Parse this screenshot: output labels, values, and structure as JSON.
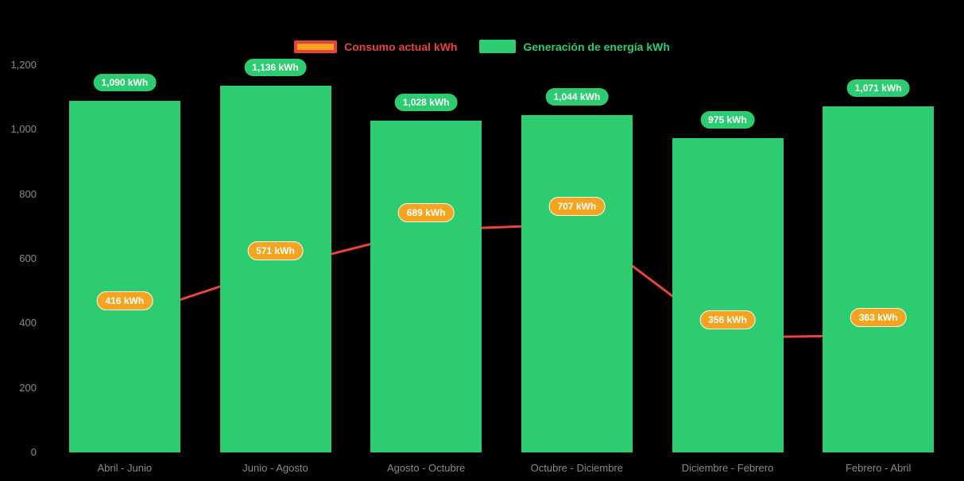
{
  "chart_data": {
    "type": "bar+line",
    "title": "",
    "categories": [
      "Abril - Junio",
      "Junio - Agosto",
      "Agosto - Octubre",
      "Octubre - Diciembre",
      "Diciembre - Febrero",
      "Febrero - Abril"
    ],
    "series": [
      {
        "name": "Consumo actual kWh",
        "type": "line",
        "color": "#e8433c",
        "marker_color": "#f6a41f",
        "values": [
          416,
          571,
          689,
          707,
          356,
          363
        ],
        "point_labels": [
          "416 kWh",
          "571 kWh",
          "689 kWh",
          "707 kWh",
          "356 kWh",
          "363 kWh"
        ]
      },
      {
        "name": "Generación de energía kWh",
        "type": "bar",
        "color": "#2ecc71",
        "values": [
          1090,
          1136,
          1028,
          1044,
          975,
          1071
        ],
        "bar_labels": [
          "1,090 kWh",
          "1,136 kWh",
          "1,028 kWh",
          "1,044 kWh",
          "975 kWh",
          "1,071 kWh"
        ]
      }
    ],
    "ylim": [
      0,
      1200
    ],
    "ytick_values": [
      0,
      200,
      400,
      600,
      800,
      1000,
      1200
    ],
    "ytick_labels": [
      "0",
      "200",
      "400",
      "600",
      "800",
      "1,000",
      "1,200"
    ],
    "legend_position": "top",
    "background": "#000000",
    "grid": false
  },
  "colors": {
    "bar_green": "#2ecc71",
    "line_red": "#e8433c",
    "label_orange": "#f6a41f",
    "axis_text": "#8a8a8a",
    "background": "#000000"
  }
}
